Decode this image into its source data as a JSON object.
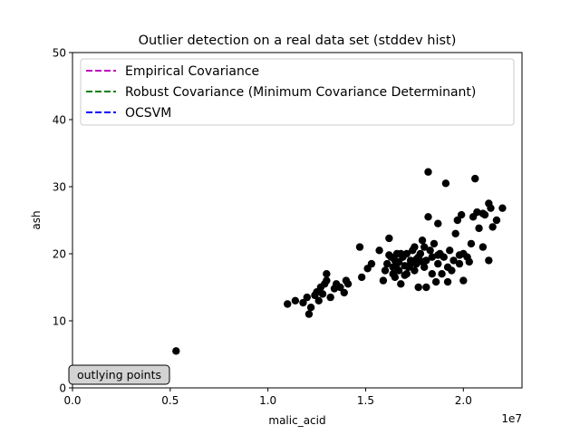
{
  "chart_data": {
    "type": "scatter",
    "title": "Outlier detection on a real data set (stddev hist)",
    "xlabel": "malic_acid",
    "ylabel": "ash",
    "x_scale_label": "1e7",
    "xlim": [
      0,
      23000000
    ],
    "ylim": [
      0,
      50
    ],
    "x_ticks": [
      0,
      5000000,
      10000000,
      15000000,
      20000000
    ],
    "x_tick_labels": [
      "0.0",
      "0.5",
      "1.0",
      "1.5",
      "2.0"
    ],
    "y_ticks": [
      0,
      10,
      20,
      30,
      40,
      50
    ],
    "y_tick_labels": [
      "0",
      "10",
      "20",
      "30",
      "40",
      "50"
    ],
    "grid": false,
    "legend_position": "top",
    "legend": [
      {
        "label": "Empirical Covariance",
        "color": "#bf00bf",
        "style": "dashed"
      },
      {
        "label": "Robust Covariance (Minimum Covariance Determinant)",
        "color": "#008000",
        "style": "dashed"
      },
      {
        "label": "OCSVM",
        "color": "#0000ff",
        "style": "dashed"
      }
    ],
    "annotation": {
      "text": "outlying points",
      "x": 0.0,
      "y": 0.0
    },
    "point_color": "#000000",
    "series": [
      {
        "points": [
          [
            5300000,
            5.5
          ],
          [
            11000000,
            12.5
          ],
          [
            11400000,
            13.0
          ],
          [
            11800000,
            12.7
          ],
          [
            12000000,
            13.5
          ],
          [
            12100000,
            11.0
          ],
          [
            12200000,
            12.0
          ],
          [
            12400000,
            13.8
          ],
          [
            12500000,
            14.3
          ],
          [
            12600000,
            13.0
          ],
          [
            12700000,
            15.0
          ],
          [
            12800000,
            14.0
          ],
          [
            12900000,
            15.5
          ],
          [
            13000000,
            17.0
          ],
          [
            13000000,
            16.0
          ],
          [
            13200000,
            13.5
          ],
          [
            13400000,
            14.8
          ],
          [
            13500000,
            15.5
          ],
          [
            13700000,
            15.0
          ],
          [
            13900000,
            14.2
          ],
          [
            14000000,
            16.0
          ],
          [
            14100000,
            15.5
          ],
          [
            14700000,
            21.0
          ],
          [
            14800000,
            16.5
          ],
          [
            15100000,
            17.8
          ],
          [
            15300000,
            18.5
          ],
          [
            15700000,
            20.5
          ],
          [
            15900000,
            16.0
          ],
          [
            16000000,
            17.5
          ],
          [
            16100000,
            18.5
          ],
          [
            16200000,
            22.3
          ],
          [
            16300000,
            19.5
          ],
          [
            16400000,
            17.0
          ],
          [
            16400000,
            18.0
          ],
          [
            16500000,
            16.5
          ],
          [
            16500000,
            19.0
          ],
          [
            16600000,
            20.0
          ],
          [
            16700000,
            17.5
          ],
          [
            16700000,
            18.8
          ],
          [
            16800000,
            15.5
          ],
          [
            16900000,
            19.5
          ],
          [
            17000000,
            16.8
          ],
          [
            17000000,
            18.2
          ],
          [
            17100000,
            20.0
          ],
          [
            17200000,
            18.0
          ],
          [
            17300000,
            19.0
          ],
          [
            17400000,
            20.5
          ],
          [
            17500000,
            17.5
          ],
          [
            17500000,
            21.0
          ],
          [
            17600000,
            18.5
          ],
          [
            17700000,
            15.0
          ],
          [
            17700000,
            19.5
          ],
          [
            17800000,
            20.0
          ],
          [
            17900000,
            22.0
          ],
          [
            18000000,
            18.0
          ],
          [
            18100000,
            19.0
          ],
          [
            18100000,
            15.0
          ],
          [
            18200000,
            25.5
          ],
          [
            18200000,
            32.2
          ],
          [
            18300000,
            20.5
          ],
          [
            18400000,
            19.5
          ],
          [
            18400000,
            17.0
          ],
          [
            18500000,
            21.5
          ],
          [
            18600000,
            15.8
          ],
          [
            18700000,
            24.5
          ],
          [
            18700000,
            18.5
          ],
          [
            18800000,
            20.0
          ],
          [
            18900000,
            17.0
          ],
          [
            19000000,
            19.5
          ],
          [
            19100000,
            30.5
          ],
          [
            19200000,
            18.0
          ],
          [
            19200000,
            15.8
          ],
          [
            19300000,
            20.5
          ],
          [
            19400000,
            17.5
          ],
          [
            19500000,
            19.0
          ],
          [
            19600000,
            23.0
          ],
          [
            19700000,
            25.0
          ],
          [
            19800000,
            18.5
          ],
          [
            19900000,
            25.8
          ],
          [
            20000000,
            20.0
          ],
          [
            20000000,
            16.0
          ],
          [
            20200000,
            19.5
          ],
          [
            20300000,
            18.8
          ],
          [
            20400000,
            21.5
          ],
          [
            20500000,
            25.5
          ],
          [
            20600000,
            31.2
          ],
          [
            20700000,
            26.2
          ],
          [
            20800000,
            23.8
          ],
          [
            21000000,
            21.0
          ],
          [
            21000000,
            26.0
          ],
          [
            21100000,
            25.8
          ],
          [
            21300000,
            27.5
          ],
          [
            21300000,
            19.0
          ],
          [
            21400000,
            26.8
          ],
          [
            21500000,
            24.0
          ],
          [
            21700000,
            25.0
          ],
          [
            22000000,
            26.8
          ],
          [
            16200000,
            19.8
          ],
          [
            16800000,
            20.0
          ],
          [
            17300000,
            18.5
          ],
          [
            17100000,
            17.0
          ],
          [
            16600000,
            18.5
          ],
          [
            18700000,
            19.8
          ],
          [
            19800000,
            19.8
          ],
          [
            17600000,
            19.2
          ],
          [
            17900000,
            18.8
          ],
          [
            18000000,
            21.0
          ]
        ]
      }
    ]
  }
}
